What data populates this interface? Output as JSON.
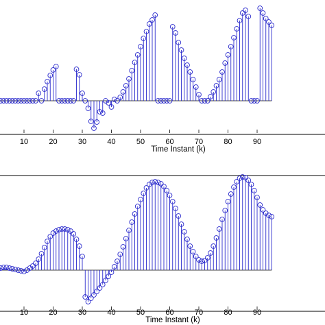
{
  "chart_data": [
    {
      "type": "stem",
      "panel": "top",
      "xlabel": "Time Instant (k)",
      "ylabel": "",
      "title": "",
      "xlim": [
        0,
        95
      ],
      "ylim": [
        -0.55,
        1.4
      ],
      "grid": false,
      "legend": "none",
      "x_ticks": [
        "10",
        "20",
        "30",
        "40",
        "50",
        "60",
        "70",
        "80",
        "90"
      ],
      "color": "#2a2acc",
      "series": [
        {
          "x": [
            0,
            1,
            2,
            3,
            4,
            5,
            6,
            7,
            8,
            9,
            10,
            11,
            12,
            13,
            14,
            15,
            16,
            17,
            18,
            19,
            20,
            21,
            22,
            23,
            24,
            25,
            26,
            27,
            28,
            29,
            30,
            31,
            32,
            33,
            34,
            35,
            36,
            37,
            38,
            39,
            40,
            41,
            42,
            43,
            44,
            45,
            46,
            47,
            48,
            49,
            50,
            51,
            52,
            53,
            54,
            55,
            56,
            57,
            58,
            59,
            60,
            61,
            62,
            63,
            64,
            65,
            66,
            67,
            68,
            69,
            70,
            71,
            72,
            73,
            74,
            75,
            76,
            77,
            78,
            79,
            80,
            81,
            82,
            83,
            84,
            85,
            86,
            87,
            88,
            89,
            90,
            91,
            92,
            93,
            94,
            95
          ],
          "y": [
            0,
            0,
            0,
            0,
            0,
            0,
            0,
            0,
            0,
            0,
            0,
            0,
            0,
            0,
            0,
            0.11,
            0,
            0.17,
            0.28,
            0.37,
            0.45,
            0.5,
            0,
            0,
            0,
            0,
            0,
            0,
            0.46,
            0.38,
            0.11,
            0,
            -0.11,
            -0.3,
            -0.4,
            -0.31,
            -0.16,
            -0.18,
            0,
            -0.03,
            -0.09,
            0.02,
            0,
            0.05,
            0.13,
            0.22,
            0.32,
            0.44,
            0.56,
            0.67,
            0.79,
            0.91,
            1.01,
            1.12,
            1.18,
            1.25,
            0,
            0,
            0,
            0,
            0,
            1.08,
            0.99,
            0.85,
            0.74,
            0.62,
            0.52,
            0.42,
            0.31,
            0.2,
            0.09,
            0,
            0,
            0,
            0.06,
            0.13,
            0.22,
            0.31,
            0.42,
            0.55,
            0.67,
            0.79,
            0.92,
            1.05,
            1.17,
            1.28,
            1.32,
            1.23,
            0,
            0,
            0,
            1.35,
            1.28,
            1.2,
            1.15,
            1.1
          ]
        }
      ]
    },
    {
      "type": "stem",
      "panel": "bottom",
      "xlabel": "Time Instant (k)",
      "ylabel": "",
      "title": "",
      "xlim": [
        0,
        95
      ],
      "ylim": [
        -0.55,
        1.4
      ],
      "grid": false,
      "legend": "none",
      "x_ticks": [
        "10",
        "20",
        "30",
        "40",
        "50",
        "60",
        "70",
        "80",
        "90"
      ],
      "color": "#2a2acc",
      "series": [
        {
          "x": [
            0,
            1,
            2,
            3,
            4,
            5,
            6,
            7,
            8,
            9,
            10,
            11,
            12,
            13,
            14,
            15,
            16,
            17,
            18,
            19,
            20,
            21,
            22,
            23,
            24,
            25,
            26,
            27,
            28,
            29,
            30,
            31,
            32,
            33,
            34,
            35,
            36,
            37,
            38,
            39,
            40,
            41,
            42,
            43,
            44,
            45,
            46,
            47,
            48,
            49,
            50,
            51,
            52,
            53,
            54,
            55,
            56,
            57,
            58,
            59,
            60,
            61,
            62,
            63,
            64,
            65,
            66,
            67,
            68,
            69,
            70,
            71,
            72,
            73,
            74,
            75,
            76,
            77,
            78,
            79,
            80,
            81,
            82,
            83,
            84,
            85,
            86,
            87,
            88,
            89,
            90,
            91,
            92,
            93,
            94,
            95
          ],
          "y": [
            0.03,
            0.03,
            0.03,
            0.04,
            0.04,
            0.03,
            0.02,
            0.01,
            0,
            -0.01,
            -0.02,
            0,
            0.03,
            0.06,
            0.1,
            0.16,
            0.24,
            0.33,
            0.42,
            0.49,
            0.54,
            0.57,
            0.59,
            0.6,
            0.6,
            0.59,
            0.57,
            0.53,
            0.45,
            0.35,
            0.2,
            -0.39,
            -0.46,
            -0.41,
            -0.36,
            -0.31,
            -0.26,
            -0.21,
            -0.15,
            -0.09,
            -0.03,
            0.05,
            0.13,
            0.23,
            0.34,
            0.46,
            0.58,
            0.7,
            0.82,
            0.93,
            1.03,
            1.12,
            1.2,
            1.25,
            1.28,
            1.29,
            1.28,
            1.26,
            1.22,
            1.16,
            1.09,
            1.0,
            0.9,
            0.79,
            0.67,
            0.56,
            0.45,
            0.35,
            0.27,
            0.2,
            0.15,
            0.13,
            0.14,
            0.18,
            0.25,
            0.35,
            0.47,
            0.6,
            0.74,
            0.87,
            1.0,
            1.11,
            1.21,
            1.29,
            1.34,
            1.36,
            1.35,
            1.31,
            1.25,
            1.16,
            1.06,
            0.95,
            0.88,
            0.83,
            0.8,
            0.78
          ]
        }
      ]
    }
  ]
}
